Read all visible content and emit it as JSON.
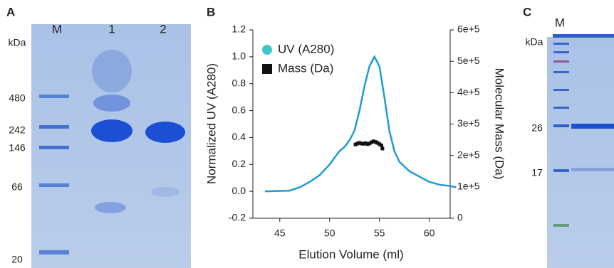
{
  "panel_a": {
    "letter": "A",
    "lanes": [
      "M",
      "1",
      "2"
    ],
    "unit": "kDa",
    "markers": [
      "480",
      "242",
      "146",
      "66",
      "20"
    ]
  },
  "chart_data": {
    "type": "line",
    "letter": "B",
    "x_label": "Elution Volume (ml)",
    "y_label": "Normalized UV (A280)",
    "y2_label": "Molecular Mass (Da)",
    "xlim": [
      42.3,
      62.1
    ],
    "xticks": [
      45,
      50,
      55,
      60
    ],
    "ylim": [
      -0.2,
      1.2
    ],
    "yticks": [
      -0.2,
      {
        "value": 0,
        "label": "0.0"
      },
      0.2,
      0.4,
      0.6,
      0.8,
      {
        "value": 1,
        "label": "1.0"
      },
      1.2
    ],
    "y2lim": [
      0,
      600000
    ],
    "y2ticks": [
      0,
      {
        "value": 100000,
        "label": "1e+5"
      },
      {
        "value": 200000,
        "label": "2e+5"
      },
      {
        "value": 300000,
        "label": "3e+5"
      },
      {
        "value": 400000,
        "label": "4e+5"
      },
      {
        "value": 500000,
        "label": "5e+5"
      },
      {
        "value": 600000,
        "label": "6e+5"
      }
    ],
    "series": [
      {
        "name": "UV (A280)",
        "color": "#1f9bd7",
        "legend_color": "#3cc8c8",
        "marker": "line",
        "x": [
          43.5,
          46,
          47,
          48,
          49,
          50,
          51,
          51.5,
          52,
          52.5,
          53,
          53.5,
          54,
          54.5,
          55,
          55.5,
          56,
          56.5,
          57,
          58,
          59,
          60,
          61,
          62,
          62.7
        ],
        "values": [
          0,
          0.005,
          0.03,
          0.07,
          0.12,
          0.2,
          0.3,
          0.33,
          0.38,
          0.45,
          0.6,
          0.78,
          0.93,
          1.0,
          0.93,
          0.7,
          0.45,
          0.3,
          0.22,
          0.15,
          0.11,
          0.07,
          0.05,
          0.04,
          0.03
        ]
      },
      {
        "name": "Mass (Da)",
        "color": "#111111",
        "legend_color": "#111111",
        "marker": "square",
        "axis": "y2",
        "x": [
          52.6,
          52.8,
          53.0,
          53.2,
          53.4,
          53.6,
          53.8,
          54.0,
          54.2,
          54.4,
          54.6,
          54.8,
          55.0,
          55.2,
          55.3
        ],
        "values": [
          235000,
          238000,
          240000,
          238000,
          237000,
          239000,
          236000,
          238000,
          242000,
          245000,
          243000,
          240000,
          236000,
          232000,
          222000
        ]
      }
    ]
  },
  "panel_c": {
    "letter": "C",
    "lanes": [
      "M"
    ],
    "unit": "kDa",
    "markers": [
      "26",
      "17"
    ]
  }
}
